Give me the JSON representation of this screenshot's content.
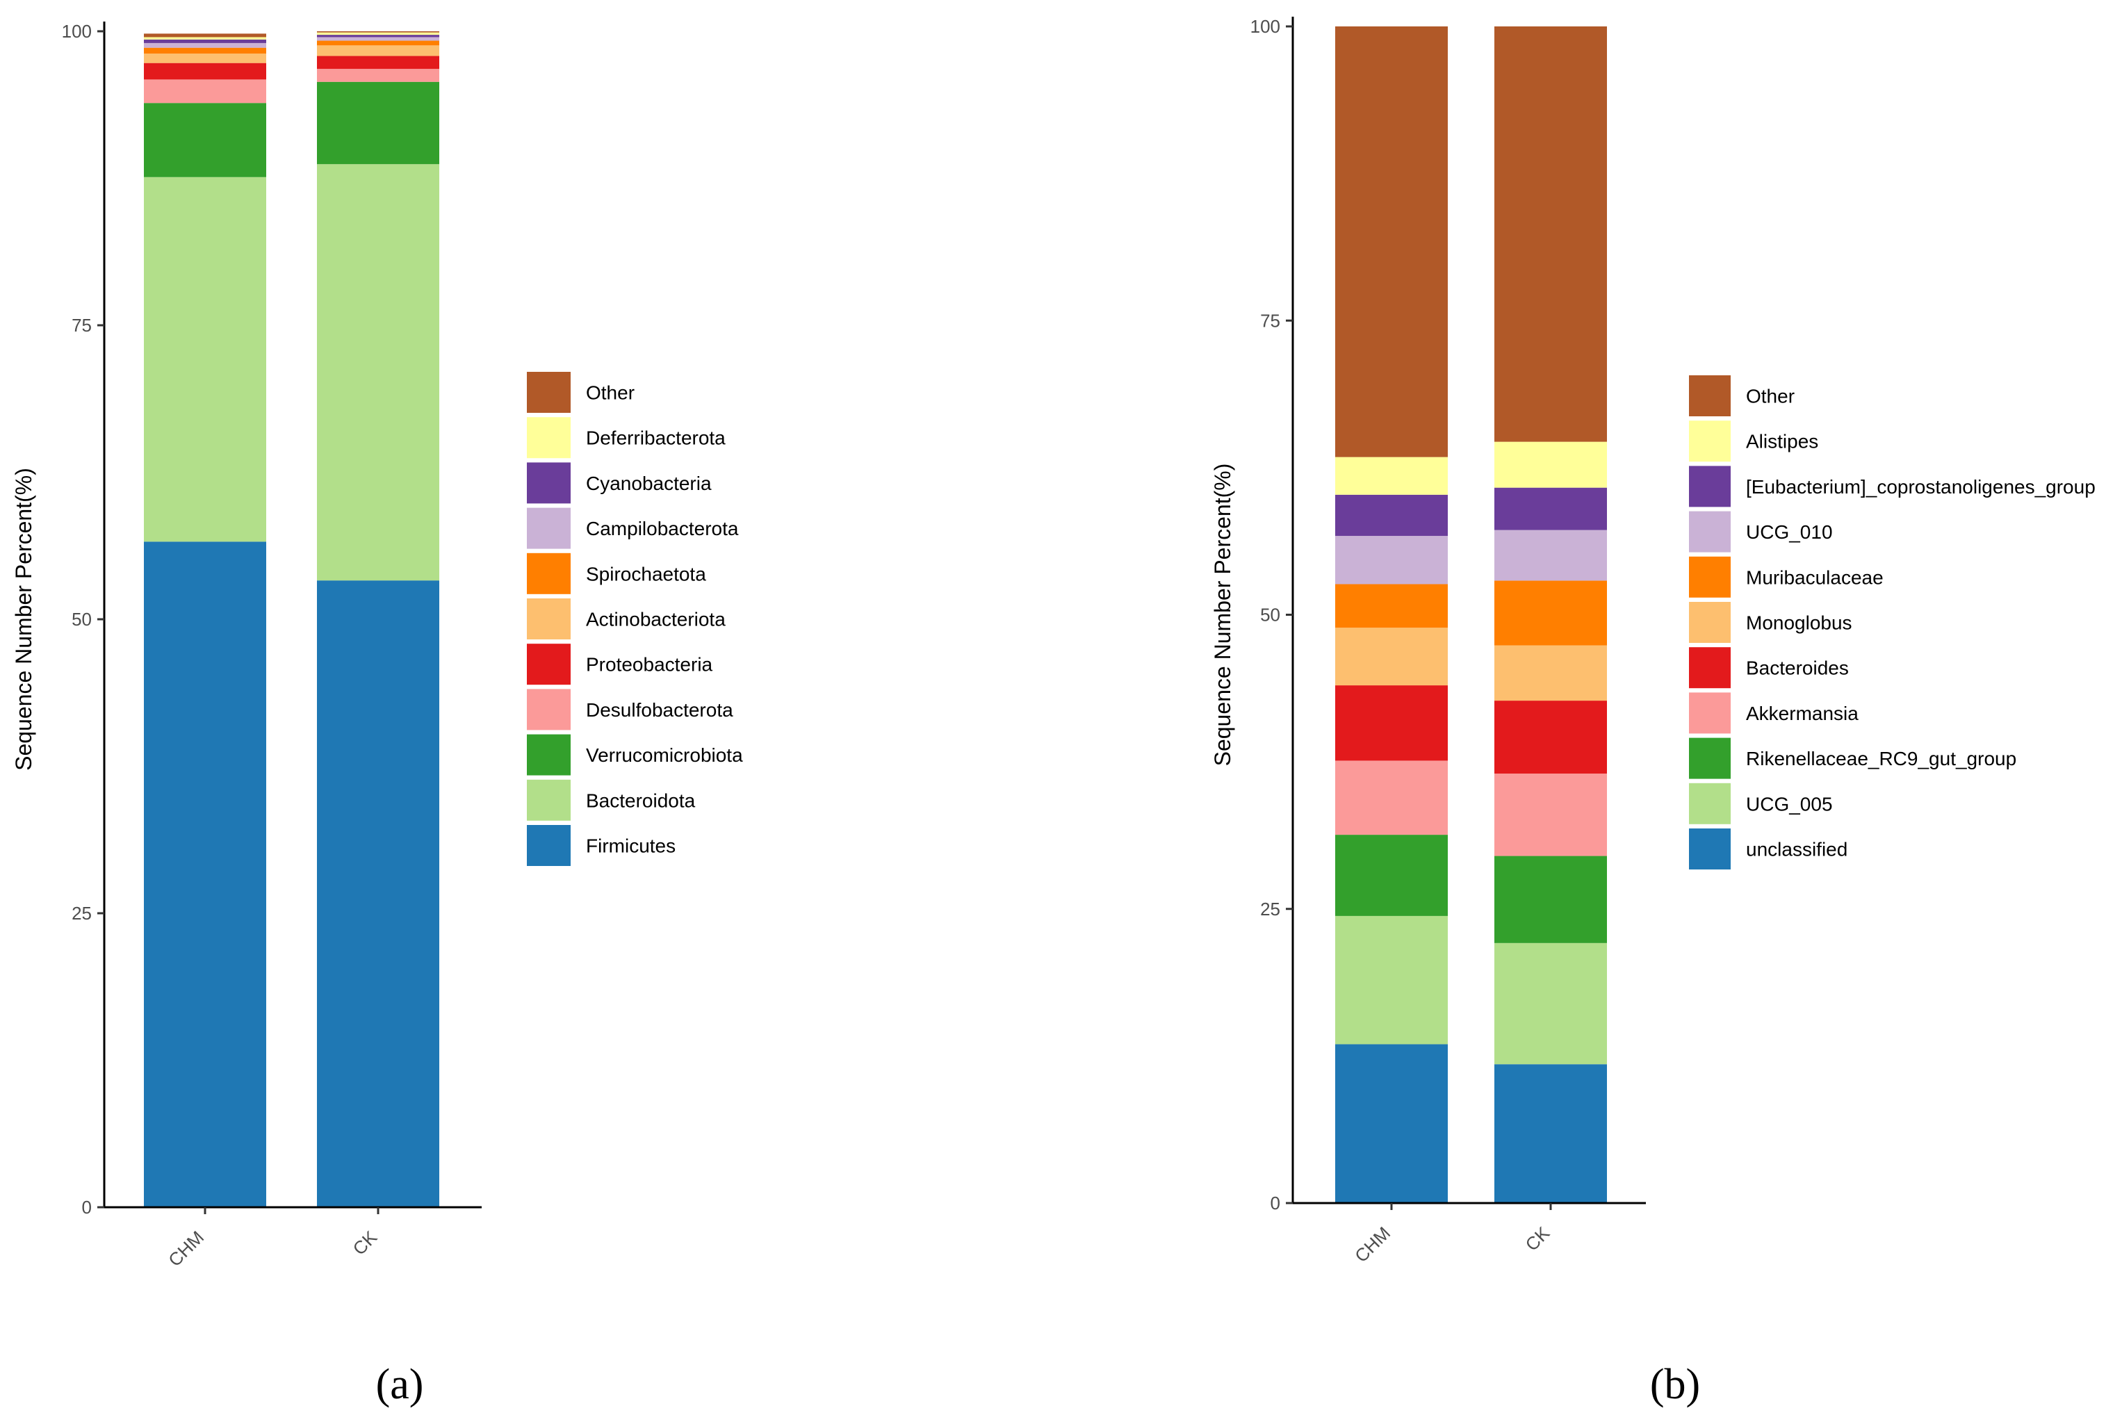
{
  "chart_data": [
    {
      "type": "bar",
      "stacked": true,
      "panel_label": "(a)",
      "ylabel": "Sequence Number Percent(%)",
      "ylim": [
        0,
        100
      ],
      "yticks": [
        "0",
        "25",
        "50",
        "75",
        "100"
      ],
      "categories": [
        "CHM",
        "CK"
      ],
      "series": [
        {
          "name": "Firmicutes",
          "color": "#1f78b4",
          "values": [
            56.6,
            53.3
          ]
        },
        {
          "name": "Bacteroidota",
          "color": "#b2df8a",
          "values": [
            31.0,
            35.4
          ]
        },
        {
          "name": "Verrucomicrobiota",
          "color": "#33a02c",
          "values": [
            6.3,
            7.0
          ]
        },
        {
          "name": "Desulfobacterota",
          "color": "#fb9a99",
          "values": [
            2.0,
            1.1
          ]
        },
        {
          "name": "Proteobacteria",
          "color": "#e31a1c",
          "values": [
            1.4,
            1.1
          ]
        },
        {
          "name": "Actinobacteriota",
          "color": "#fdbf6f",
          "values": [
            0.8,
            0.9
          ]
        },
        {
          "name": "Spirochaetota",
          "color": "#ff7f00",
          "values": [
            0.5,
            0.4
          ]
        },
        {
          "name": "Campilobacterota",
          "color": "#cab2d6",
          "values": [
            0.4,
            0.3
          ]
        },
        {
          "name": "Cyanobacteria",
          "color": "#6a3d9a",
          "values": [
            0.3,
            0.2
          ]
        },
        {
          "name": "Deferribacterota",
          "color": "#ffff99",
          "values": [
            0.2,
            0.2
          ]
        },
        {
          "name": "Other",
          "color": "#b15928",
          "values": [
            0.3,
            0.1
          ]
        }
      ]
    },
    {
      "type": "bar",
      "stacked": true,
      "panel_label": "(b)",
      "ylabel": "Sequence Number Percent(%)",
      "ylim": [
        0,
        100
      ],
      "yticks": [
        "0",
        "25",
        "50",
        "75",
        "100"
      ],
      "categories": [
        "CHM",
        "CK"
      ],
      "series": [
        {
          "name": "unclassified",
          "color": "#1f78b4",
          "values": [
            13.5,
            11.8
          ]
        },
        {
          "name": "UCG_005",
          "color": "#b2df8a",
          "values": [
            10.9,
            10.3
          ]
        },
        {
          "name": "Rikenellaceae_RC9_gut_group",
          "color": "#33a02c",
          "values": [
            6.9,
            7.4
          ]
        },
        {
          "name": "Akkermansia",
          "color": "#fb9a99",
          "values": [
            6.3,
            7.0
          ]
        },
        {
          "name": "Bacteroides",
          "color": "#e31a1c",
          "values": [
            6.4,
            6.2
          ]
        },
        {
          "name": "Monoglobus",
          "color": "#fdbf6f",
          "values": [
            4.9,
            4.7
          ]
        },
        {
          "name": "Muribaculaceae",
          "color": "#ff7f00",
          "values": [
            3.7,
            5.5
          ]
        },
        {
          "name": "UCG_010",
          "color": "#cab2d6",
          "values": [
            4.1,
            4.3
          ]
        },
        {
          "name": "[Eubacterium]_coprostanoligenes_group",
          "color": "#6a3d9a",
          "values": [
            3.5,
            3.6
          ]
        },
        {
          "name": "Alistipes",
          "color": "#ffff99",
          "values": [
            3.2,
            3.9
          ]
        },
        {
          "name": "Other",
          "color": "#b15928",
          "values": [
            36.6,
            35.3
          ]
        }
      ]
    }
  ]
}
